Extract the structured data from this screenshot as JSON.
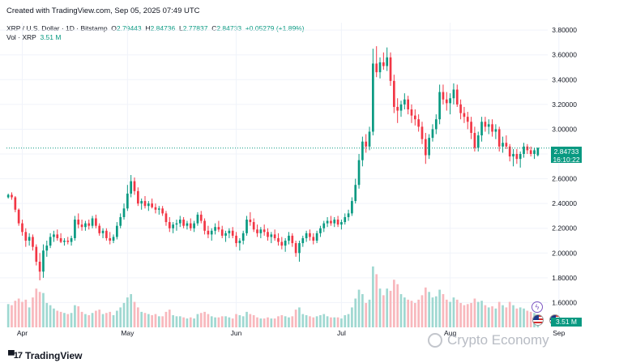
{
  "header": {
    "created_text": "Created with TradingView.com, Sep 05, 2025 07:49 UTC"
  },
  "legend": {
    "symbol": "XRP / U.S. Dollar · 1D · Bitstamp",
    "o_label": "O",
    "o_value": "2.79443",
    "h_label": "H",
    "h_value": "2.84736",
    "l_label": "L",
    "l_value": "2.77837",
    "c_label": "C",
    "c_value": "2.84733",
    "change": "+0.05279 (+1.89%)"
  },
  "volume_legend": {
    "label": "Vol · XRP",
    "value": "3.51 M"
  },
  "price_tag": {
    "price": "2.84733",
    "countdown": "16:10:22"
  },
  "volume_tag": "3.51 M",
  "brand": "TradingView",
  "watermark": "Crypto Economy",
  "colors": {
    "up": "#089981",
    "down": "#f23645",
    "vol_up": "#9fd8d1",
    "vol_down": "#f8b8bd",
    "grid": "#f0f3fa",
    "axis_text": "#131722"
  },
  "chart_data": {
    "type": "candlestick",
    "ylim": [
      1.4,
      3.86
    ],
    "yticks": [
      "3.80000",
      "3.60000",
      "3.40000",
      "3.20000",
      "3.00000",
      "2.80000",
      "2.60000",
      "2.40000",
      "2.20000",
      "2.00000",
      "1.80000",
      "1.60000"
    ],
    "ytick_values": [
      3.8,
      3.6,
      3.4,
      3.2,
      3.0,
      2.8,
      2.6,
      2.4,
      2.2,
      2.0,
      1.8,
      1.6
    ],
    "xticks": [
      {
        "label": "Apr",
        "index": 4
      },
      {
        "label": "May",
        "index": 34
      },
      {
        "label": "Jun",
        "index": 65
      },
      {
        "label": "Jul",
        "index": 95
      },
      {
        "label": "Aug",
        "index": 126
      },
      {
        "label": "Sep",
        "index": 157
      }
    ],
    "last_price": 2.84733,
    "candles": [
      [
        2.45,
        2.48,
        2.44,
        2.47,
        2.1
      ],
      [
        2.47,
        2.49,
        2.43,
        2.45,
        2.0
      ],
      [
        2.45,
        2.46,
        2.33,
        2.35,
        2.4
      ],
      [
        2.35,
        2.36,
        2.22,
        2.24,
        2.6
      ],
      [
        2.24,
        2.27,
        2.14,
        2.17,
        2.3
      ],
      [
        2.17,
        2.2,
        2.05,
        2.1,
        2.5
      ],
      [
        2.1,
        2.16,
        2.06,
        2.13,
        1.8
      ],
      [
        2.13,
        2.15,
        2.02,
        2.05,
        2.7
      ],
      [
        2.05,
        2.07,
        1.9,
        1.93,
        3.5
      ],
      [
        1.93,
        2.0,
        1.78,
        1.85,
        3.2
      ],
      [
        1.85,
        2.07,
        1.8,
        2.02,
        3.1
      ],
      [
        2.02,
        2.1,
        1.97,
        2.06,
        2.2
      ],
      [
        2.06,
        2.16,
        2.04,
        2.13,
        2.0
      ],
      [
        2.13,
        2.18,
        2.09,
        2.15,
        1.7
      ],
      [
        2.15,
        2.19,
        2.1,
        2.12,
        1.5
      ],
      [
        2.12,
        2.16,
        2.08,
        2.09,
        1.4
      ],
      [
        2.09,
        2.12,
        2.06,
        2.1,
        1.3
      ],
      [
        2.1,
        2.13,
        2.07,
        2.09,
        1.2
      ],
      [
        2.09,
        2.14,
        2.06,
        2.12,
        1.3
      ],
      [
        2.12,
        2.3,
        2.1,
        2.27,
        2.0
      ],
      [
        2.27,
        2.32,
        2.2,
        2.23,
        1.9
      ],
      [
        2.23,
        2.27,
        2.18,
        2.21,
        1.4
      ],
      [
        2.21,
        2.26,
        2.18,
        2.24,
        1.2
      ],
      [
        2.24,
        2.27,
        2.19,
        2.22,
        1.1
      ],
      [
        2.22,
        2.3,
        2.2,
        2.28,
        1.3
      ],
      [
        2.28,
        2.31,
        2.2,
        2.22,
        1.5
      ],
      [
        2.22,
        2.24,
        2.14,
        2.16,
        1.6
      ],
      [
        2.16,
        2.2,
        2.12,
        2.18,
        1.2
      ],
      [
        2.18,
        2.2,
        2.1,
        2.12,
        1.3
      ],
      [
        2.12,
        2.17,
        2.07,
        2.1,
        1.4
      ],
      [
        2.1,
        2.15,
        2.08,
        2.13,
        1.1
      ],
      [
        2.13,
        2.25,
        2.11,
        2.22,
        1.5
      ],
      [
        2.22,
        2.32,
        2.2,
        2.29,
        1.8
      ],
      [
        2.29,
        2.4,
        2.27,
        2.36,
        2.2
      ],
      [
        2.36,
        2.55,
        2.34,
        2.48,
        2.7
      ],
      [
        2.48,
        2.63,
        2.45,
        2.58,
        3.0
      ],
      [
        2.58,
        2.61,
        2.47,
        2.5,
        2.3
      ],
      [
        2.5,
        2.53,
        2.38,
        2.4,
        1.8
      ],
      [
        2.4,
        2.44,
        2.35,
        2.42,
        1.4
      ],
      [
        2.42,
        2.46,
        2.36,
        2.38,
        1.3
      ],
      [
        2.38,
        2.42,
        2.34,
        2.4,
        1.2
      ],
      [
        2.4,
        2.44,
        2.36,
        2.37,
        1.1
      ],
      [
        2.37,
        2.4,
        2.32,
        2.35,
        1.2
      ],
      [
        2.35,
        2.38,
        2.31,
        2.36,
        1.0
      ],
      [
        2.36,
        2.38,
        2.3,
        2.32,
        1.0
      ],
      [
        2.32,
        2.34,
        2.22,
        2.25,
        1.4
      ],
      [
        2.25,
        2.29,
        2.17,
        2.2,
        1.6
      ],
      [
        2.2,
        2.25,
        2.16,
        2.23,
        1.1
      ],
      [
        2.23,
        2.27,
        2.18,
        2.24,
        1.0
      ],
      [
        2.24,
        2.3,
        2.21,
        2.27,
        1.0
      ],
      [
        2.27,
        2.29,
        2.2,
        2.22,
        0.9
      ],
      [
        2.22,
        2.26,
        2.19,
        2.24,
        0.8
      ],
      [
        2.24,
        2.28,
        2.18,
        2.2,
        0.9
      ],
      [
        2.2,
        2.26,
        2.17,
        2.24,
        0.8
      ],
      [
        2.24,
        2.33,
        2.22,
        2.31,
        1.2
      ],
      [
        2.31,
        2.34,
        2.24,
        2.26,
        1.3
      ],
      [
        2.26,
        2.28,
        2.15,
        2.18,
        1.4
      ],
      [
        2.18,
        2.22,
        2.12,
        2.15,
        1.2
      ],
      [
        2.15,
        2.2,
        2.1,
        2.18,
        1.0
      ],
      [
        2.18,
        2.24,
        2.15,
        2.21,
        0.9
      ],
      [
        2.21,
        2.26,
        2.17,
        2.19,
        0.9
      ],
      [
        2.19,
        2.22,
        2.12,
        2.14,
        1.0
      ],
      [
        2.14,
        2.18,
        2.09,
        2.16,
        1.0
      ],
      [
        2.16,
        2.2,
        2.12,
        2.18,
        0.9
      ],
      [
        2.18,
        2.21,
        2.12,
        2.14,
        0.8
      ],
      [
        2.14,
        2.17,
        2.05,
        2.08,
        1.2
      ],
      [
        2.08,
        2.12,
        2.02,
        2.1,
        1.1
      ],
      [
        2.1,
        2.18,
        2.07,
        2.16,
        1.0
      ],
      [
        2.16,
        2.3,
        2.14,
        2.27,
        1.4
      ],
      [
        2.27,
        2.33,
        2.22,
        2.25,
        1.2
      ],
      [
        2.25,
        2.28,
        2.17,
        2.19,
        1.1
      ],
      [
        2.19,
        2.23,
        2.13,
        2.16,
        0.9
      ],
      [
        2.16,
        2.21,
        2.12,
        2.19,
        0.8
      ],
      [
        2.19,
        2.23,
        2.14,
        2.17,
        0.8
      ],
      [
        2.17,
        2.2,
        2.1,
        2.13,
        0.9
      ],
      [
        2.13,
        2.17,
        2.08,
        2.15,
        0.8
      ],
      [
        2.15,
        2.19,
        2.1,
        2.12,
        0.8
      ],
      [
        2.12,
        2.16,
        2.06,
        2.09,
        1.0
      ],
      [
        2.09,
        2.13,
        2.03,
        2.06,
        1.1
      ],
      [
        2.06,
        2.12,
        2.01,
        2.1,
        1.0
      ],
      [
        2.1,
        2.17,
        2.07,
        2.14,
        0.9
      ],
      [
        2.14,
        2.16,
        2.05,
        2.08,
        1.0
      ],
      [
        2.08,
        2.1,
        1.97,
        2.0,
        1.6
      ],
      [
        2.0,
        2.1,
        1.93,
        2.08,
        1.8
      ],
      [
        2.08,
        2.14,
        2.05,
        2.12,
        1.2
      ],
      [
        2.12,
        2.18,
        2.09,
        2.16,
        1.1
      ],
      [
        2.16,
        2.19,
        2.1,
        2.13,
        1.0
      ],
      [
        2.13,
        2.16,
        2.07,
        2.1,
        0.9
      ],
      [
        2.1,
        2.18,
        2.08,
        2.16,
        1.0
      ],
      [
        2.16,
        2.22,
        2.13,
        2.2,
        1.1
      ],
      [
        2.2,
        2.26,
        2.17,
        2.24,
        1.2
      ],
      [
        2.24,
        2.29,
        2.21,
        2.26,
        1.0
      ],
      [
        2.26,
        2.3,
        2.22,
        2.24,
        0.9
      ],
      [
        2.24,
        2.29,
        2.21,
        2.27,
        0.9
      ],
      [
        2.27,
        2.3,
        2.21,
        2.23,
        0.9
      ],
      [
        2.23,
        2.27,
        2.19,
        2.25,
        0.8
      ],
      [
        2.25,
        2.32,
        2.23,
        2.29,
        1.1
      ],
      [
        2.29,
        2.35,
        2.26,
        2.32,
        1.2
      ],
      [
        2.32,
        2.45,
        2.3,
        2.42,
        1.8
      ],
      [
        2.42,
        2.6,
        2.4,
        2.55,
        2.6
      ],
      [
        2.55,
        2.8,
        2.52,
        2.75,
        3.4
      ],
      [
        2.75,
        2.94,
        2.7,
        2.9,
        3.0
      ],
      [
        2.9,
        2.96,
        2.81,
        2.86,
        2.2
      ],
      [
        2.86,
        3.02,
        2.83,
        2.98,
        2.5
      ],
      [
        2.98,
        3.65,
        2.95,
        3.53,
        5.5
      ],
      [
        3.53,
        3.67,
        3.42,
        3.46,
        4.8
      ],
      [
        3.46,
        3.58,
        3.41,
        3.54,
        3.5
      ],
      [
        3.54,
        3.62,
        3.48,
        3.51,
        2.9
      ],
      [
        3.51,
        3.66,
        3.47,
        3.58,
        3.5
      ],
      [
        3.58,
        3.62,
        3.35,
        3.39,
        3.3
      ],
      [
        3.39,
        3.44,
        3.13,
        3.18,
        4.3
      ],
      [
        3.18,
        3.25,
        3.05,
        3.15,
        3.9
      ],
      [
        3.15,
        3.23,
        3.1,
        3.2,
        3.0
      ],
      [
        3.2,
        3.29,
        3.16,
        3.24,
        2.7
      ],
      [
        3.24,
        3.27,
        3.12,
        3.16,
        2.5
      ],
      [
        3.16,
        3.2,
        3.05,
        3.11,
        2.4
      ],
      [
        3.11,
        3.16,
        3.03,
        3.08,
        2.2
      ],
      [
        3.08,
        3.12,
        2.98,
        3.02,
        2.5
      ],
      [
        3.02,
        3.06,
        2.88,
        2.92,
        2.9
      ],
      [
        2.92,
        2.97,
        2.72,
        2.79,
        3.6
      ],
      [
        2.79,
        2.96,
        2.76,
        2.93,
        3.2
      ],
      [
        2.93,
        3.04,
        2.9,
        3.0,
        2.7
      ],
      [
        3.0,
        3.12,
        2.96,
        3.08,
        2.8
      ],
      [
        3.08,
        3.36,
        3.04,
        3.3,
        3.4
      ],
      [
        3.3,
        3.36,
        3.2,
        3.24,
        3.0
      ],
      [
        3.24,
        3.3,
        3.15,
        3.21,
        2.5
      ],
      [
        3.21,
        3.29,
        3.12,
        3.25,
        2.3
      ],
      [
        3.25,
        3.37,
        3.2,
        3.32,
        2.7
      ],
      [
        3.32,
        3.36,
        3.18,
        3.2,
        2.5
      ],
      [
        3.2,
        3.24,
        3.08,
        3.13,
        2.2
      ],
      [
        3.13,
        3.18,
        3.05,
        3.1,
        2.0
      ],
      [
        3.1,
        3.14,
        3.0,
        3.06,
        2.1
      ],
      [
        3.06,
        3.1,
        2.92,
        2.97,
        2.2
      ],
      [
        2.97,
        3.02,
        2.82,
        2.85,
        2.6
      ],
      [
        2.85,
        2.98,
        2.82,
        2.95,
        2.3
      ],
      [
        2.95,
        3.1,
        2.9,
        3.06,
        2.4
      ],
      [
        3.06,
        3.1,
        2.98,
        3.02,
        2.0
      ],
      [
        3.02,
        3.08,
        2.96,
        3.04,
        1.8
      ],
      [
        3.04,
        3.08,
        2.94,
        2.98,
        1.9
      ],
      [
        2.98,
        3.04,
        2.92,
        3.0,
        1.7
      ],
      [
        3.0,
        3.02,
        2.82,
        2.86,
        2.3
      ],
      [
        2.86,
        2.94,
        2.81,
        2.89,
        2.0
      ],
      [
        2.89,
        2.95,
        2.84,
        2.86,
        1.8
      ],
      [
        2.86,
        2.88,
        2.74,
        2.78,
        2.3
      ],
      [
        2.78,
        2.84,
        2.7,
        2.8,
        2.0
      ],
      [
        2.8,
        2.84,
        2.72,
        2.76,
        1.7
      ],
      [
        2.76,
        2.82,
        2.69,
        2.8,
        1.8
      ],
      [
        2.8,
        2.89,
        2.77,
        2.86,
        1.7
      ],
      [
        2.86,
        2.88,
        2.8,
        2.83,
        1.5
      ],
      [
        2.83,
        2.86,
        2.78,
        2.8,
        1.4
      ],
      [
        2.8,
        2.85,
        2.76,
        2.83,
        1.3
      ],
      [
        2.79,
        2.85,
        2.78,
        2.85,
        0.9
      ]
    ]
  }
}
